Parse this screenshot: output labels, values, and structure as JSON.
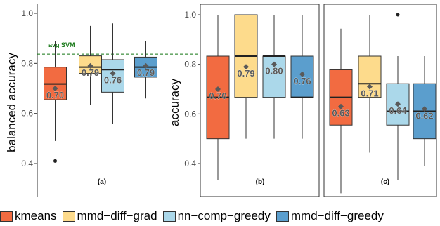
{
  "colors": {
    "kmeans": "#f26b41",
    "mmd-diff-grad": "#fddb8c",
    "nn-comp-greedy": "#abd8ea",
    "mmd-diff-greedy": "#5b9ecd",
    "reference_line": "#127512",
    "mean_marker": "#595959"
  },
  "legend": [
    {
      "name": "kmeans",
      "color": "#f26b41"
    },
    {
      "name": "mmd−diff−grad",
      "color": "#fddb8c"
    },
    {
      "name": "nn−comp−greedy",
      "color": "#abd8ea"
    },
    {
      "name": "mmd−diff−greedy",
      "color": "#5b9ecd"
    }
  ],
  "chart_data": [
    {
      "type": "box",
      "panel_tag": "(a)",
      "ylabel": "balanced accuracy",
      "ylim": [
        0.35,
        1.05
      ],
      "yticks": [
        "0.4",
        "0.6",
        "0.8",
        "1.0"
      ],
      "reference_line": {
        "value": 0.837,
        "label": "avg SVM"
      },
      "boxes": [
        {
          "series": "kmeans",
          "whisker_low": 0.49,
          "q1": 0.655,
          "median": 0.718,
          "q3": 0.785,
          "whisker_high": 0.89,
          "mean": 0.7,
          "mean_label": "0.70",
          "outliers": [
            0.41
          ]
        },
        {
          "series": "mmd−diff−grad",
          "whisker_low": 0.635,
          "q1": 0.76,
          "median": 0.785,
          "q3": 0.83,
          "whisker_high": 0.95,
          "mean": 0.79,
          "mean_label": "0.79",
          "outliers": []
        },
        {
          "series": "nn−comp−greedy",
          "whisker_low": 0.558,
          "q1": 0.685,
          "median": 0.775,
          "q3": 0.815,
          "whisker_high": 0.96,
          "mean": 0.76,
          "mean_label": "0.76",
          "outliers": []
        },
        {
          "series": "mmd−diff−greedy",
          "whisker_low": 0.66,
          "q1": 0.745,
          "median": 0.785,
          "q3": 0.825,
          "whisker_high": 0.89,
          "mean": 0.79,
          "mean_label": "0.79",
          "outliers": []
        }
      ]
    },
    {
      "type": "box",
      "panel_tag": "(b)",
      "ylabel": "accuracy",
      "ylim": [
        0.28,
        1.05
      ],
      "yticks": [
        "0.4",
        "0.6",
        "0.8",
        "1.0"
      ],
      "boxes": [
        {
          "series": "kmeans",
          "whisker_low": 0.335,
          "q1": 0.5,
          "median": 0.667,
          "q3": 0.833,
          "whisker_high": 1.0,
          "mean": 0.7,
          "mean_label": "0.70",
          "outliers": []
        },
        {
          "series": "mmd−diff−grad",
          "whisker_low": 0.5,
          "q1": 0.667,
          "median": 0.833,
          "q3": 1.0,
          "whisker_high": 1.0,
          "mean": 0.79,
          "mean_label": "0.79",
          "outliers": []
        },
        {
          "series": "nn−comp−greedy",
          "whisker_low": 0.5,
          "q1": 0.667,
          "median": 0.833,
          "q3": 0.833,
          "whisker_high": 1.0,
          "mean": 0.8,
          "mean_label": "0.80",
          "outliers": []
        },
        {
          "series": "mmd−diff−greedy",
          "whisker_low": 0.5,
          "q1": 0.667,
          "median": 0.667,
          "q3": 0.833,
          "whisker_high": 1.0,
          "mean": 0.76,
          "mean_label": "0.76",
          "outliers": []
        }
      ]
    },
    {
      "type": "box",
      "panel_tag": "(c)",
      "ylim": [
        0.28,
        1.05
      ],
      "boxes": [
        {
          "series": "kmeans",
          "whisker_low": 0.28,
          "q1": 0.555,
          "median": 0.667,
          "q3": 0.778,
          "whisker_high": 0.944,
          "mean": 0.63,
          "mean_label": "0.63",
          "outliers": []
        },
        {
          "series": "mmd−diff−grad",
          "whisker_low": 0.444,
          "q1": 0.667,
          "median": 0.722,
          "q3": 0.833,
          "whisker_high": 1.0,
          "mean": 0.71,
          "mean_label": "0.71",
          "outliers": []
        },
        {
          "series": "nn−comp−greedy",
          "whisker_low": 0.333,
          "q1": 0.555,
          "median": 0.611,
          "q3": 0.722,
          "whisker_high": 0.833,
          "mean": 0.64,
          "mean_label": "0.64",
          "outliers": [
            1.0
          ]
        },
        {
          "series": "mmd−diff−greedy",
          "whisker_low": 0.389,
          "q1": 0.5,
          "median": 0.611,
          "q3": 0.722,
          "whisker_high": 0.833,
          "mean": 0.62,
          "mean_label": "0.62",
          "outliers": []
        }
      ]
    }
  ]
}
